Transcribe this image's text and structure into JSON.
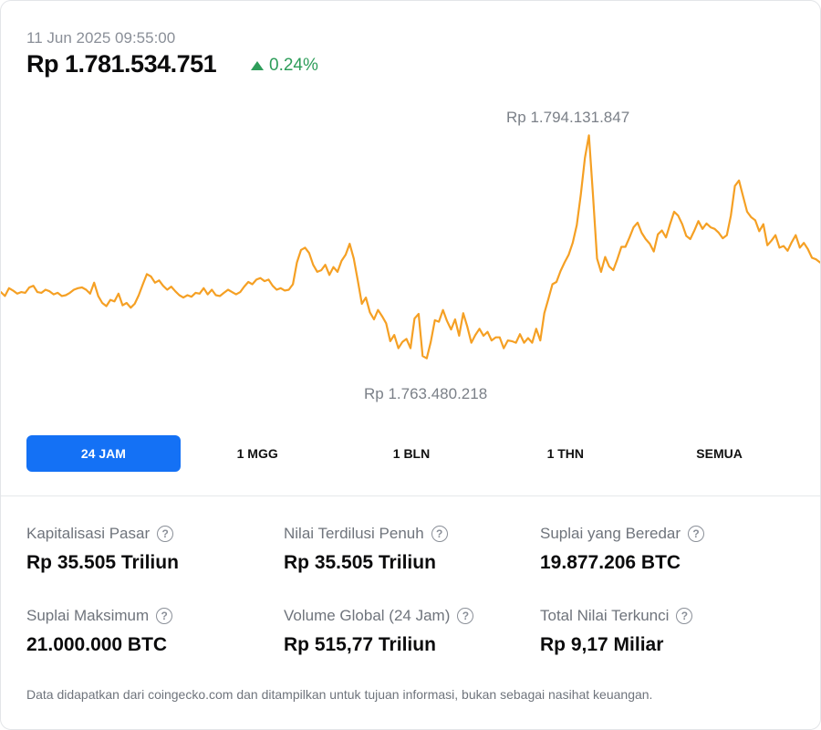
{
  "header": {
    "timestamp": "11 Jun 2025 09:55:00",
    "price": "Rp 1.781.534.751",
    "change": "0.24%"
  },
  "chart": {
    "high_label": "Rp 1.794.131.847",
    "low_label": "Rp 1.763.480.218",
    "line_color": "#f5a024"
  },
  "chart_data": {
    "type": "line",
    "series": [
      {
        "values": [
          1774.0,
          1773.5,
          1774.5,
          1774.2,
          1773.8,
          1774.0,
          1773.9,
          1774.6,
          1774.8,
          1774.0,
          1773.9,
          1774.3,
          1774.1,
          1773.7,
          1773.9,
          1773.5,
          1773.6,
          1773.9,
          1774.3,
          1774.5,
          1774.6,
          1774.3,
          1773.8,
          1775.2,
          1773.5,
          1772.6,
          1772.2,
          1773.0,
          1772.8,
          1773.8,
          1772.3,
          1772.6,
          1772.0,
          1772.5,
          1773.6,
          1775.0,
          1776.3,
          1776.0,
          1775.2,
          1775.5,
          1774.8,
          1774.3,
          1774.7,
          1774.1,
          1773.6,
          1773.3,
          1773.6,
          1773.4,
          1773.9,
          1773.8,
          1774.5,
          1773.7,
          1774.3,
          1773.6,
          1773.5,
          1773.9,
          1774.3,
          1774.0,
          1773.7,
          1774.0,
          1774.7,
          1775.3,
          1775.0,
          1775.6,
          1775.8,
          1775.4,
          1775.6,
          1774.8,
          1774.3,
          1774.5,
          1774.2,
          1774.3,
          1775.0,
          1777.8,
          1779.4,
          1779.7,
          1779.0,
          1777.5,
          1776.6,
          1776.8,
          1777.5,
          1776.2,
          1777.2,
          1776.6,
          1778.0,
          1778.8,
          1780.2,
          1778.3,
          1775.5,
          1772.5,
          1773.3,
          1771.4,
          1770.5,
          1771.7,
          1770.9,
          1770.0,
          1767.7,
          1768.5,
          1766.8,
          1767.6,
          1768.0,
          1766.8,
          1770.6,
          1771.2,
          1765.8,
          1765.5,
          1767.6,
          1770.4,
          1770.2,
          1771.7,
          1770.3,
          1769.2,
          1770.5,
          1768.4,
          1771.3,
          1769.6,
          1767.5,
          1768.5,
          1769.3,
          1768.4,
          1768.9,
          1767.8,
          1768.2,
          1768.2,
          1766.8,
          1767.8,
          1767.7,
          1767.5,
          1768.6,
          1767.5,
          1768.1,
          1767.5,
          1769.3,
          1767.8,
          1771.3,
          1773.1,
          1775.0,
          1775.3,
          1776.7,
          1777.8,
          1778.8,
          1780.3,
          1782.6,
          1786.5,
          1791.2,
          1794.1,
          1786.5,
          1778.3,
          1776.6,
          1778.5,
          1777.3,
          1776.8,
          1778.2,
          1779.8,
          1779.8,
          1781.0,
          1782.3,
          1782.9,
          1781.6,
          1780.8,
          1780.2,
          1779.2,
          1781.4,
          1781.9,
          1781.0,
          1782.7,
          1784.3,
          1783.8,
          1782.7,
          1781.2,
          1780.8,
          1781.9,
          1783.1,
          1782.1,
          1782.8,
          1782.3,
          1782.1,
          1781.6,
          1780.9,
          1781.3,
          1783.8,
          1787.6,
          1788.3,
          1786.3,
          1784.3,
          1783.6,
          1783.2,
          1781.8,
          1782.7,
          1780.0,
          1780.6,
          1781.3,
          1779.7,
          1779.9,
          1779.3,
          1780.4,
          1781.3,
          1779.7,
          1780.3,
          1779.5,
          1778.4,
          1778.2,
          1777.8
        ]
      }
    ],
    "annotations": [
      "Rp 1.794.131.847",
      "Rp 1.763.480.218"
    ]
  },
  "tabs": [
    {
      "label": "24 JAM",
      "active": true
    },
    {
      "label": "1 MGG",
      "active": false
    },
    {
      "label": "1 BLN",
      "active": false
    },
    {
      "label": "1 THN",
      "active": false
    },
    {
      "label": "SEMUA",
      "active": false
    }
  ],
  "stats": [
    {
      "label": "Kapitalisasi Pasar",
      "value": "Rp 35.505 Triliun"
    },
    {
      "label": "Nilai Terdilusi Penuh",
      "value": "Rp 35.505 Triliun"
    },
    {
      "label": "Suplai yang Beredar",
      "value": "19.877.206 BTC"
    },
    {
      "label": "Suplai Maksimum",
      "value": "21.000.000 BTC"
    },
    {
      "label": "Volume Global (24 Jam)",
      "value": "Rp 515,77 Triliun"
    },
    {
      "label": "Total Nilai Terkunci",
      "value": "Rp 9,17 Miliar"
    }
  ],
  "help_icon_glyph": "?",
  "footer": "Data didapatkan dari coingecko.com dan ditampilkan untuk tujuan informasi, bukan sebagai nasihat keuangan.",
  "colors": {
    "accent": "#1471f5",
    "positive": "#2e9d5a",
    "line": "#f5a024"
  }
}
